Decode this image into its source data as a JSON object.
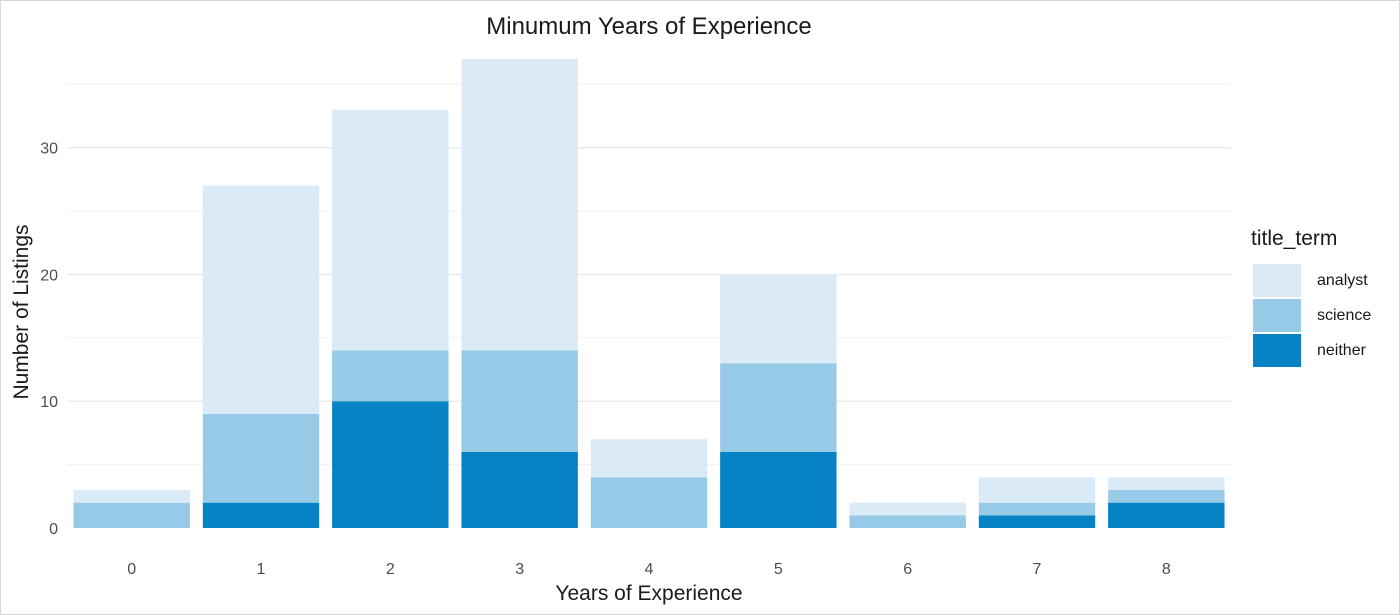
{
  "chart_data": {
    "type": "bar",
    "stacked": true,
    "title": "Minumum Years of Experience",
    "xlabel": "Years of Experience",
    "ylabel": "Number of Listings",
    "categories": [
      "0",
      "1",
      "2",
      "3",
      "4",
      "5",
      "6",
      "7",
      "8"
    ],
    "series": [
      {
        "name": "neither",
        "color": "#0682c5",
        "values": [
          0,
          2,
          10,
          6,
          0,
          6,
          0,
          1,
          2
        ]
      },
      {
        "name": "science",
        "color": "#96cae6",
        "values": [
          2,
          7,
          4,
          8,
          4,
          7,
          1,
          1,
          1
        ]
      },
      {
        "name": "analyst",
        "color": "#dbeaf7",
        "values": [
          1,
          18,
          19,
          23,
          3,
          7,
          1,
          2,
          1
        ]
      }
    ],
    "ylim": [
      0,
      37
    ],
    "yticks": [
      0,
      10,
      20,
      30
    ],
    "grid": true,
    "legend": {
      "title": "title_term",
      "position": "right",
      "items": [
        "analyst",
        "science",
        "neither"
      ]
    }
  }
}
